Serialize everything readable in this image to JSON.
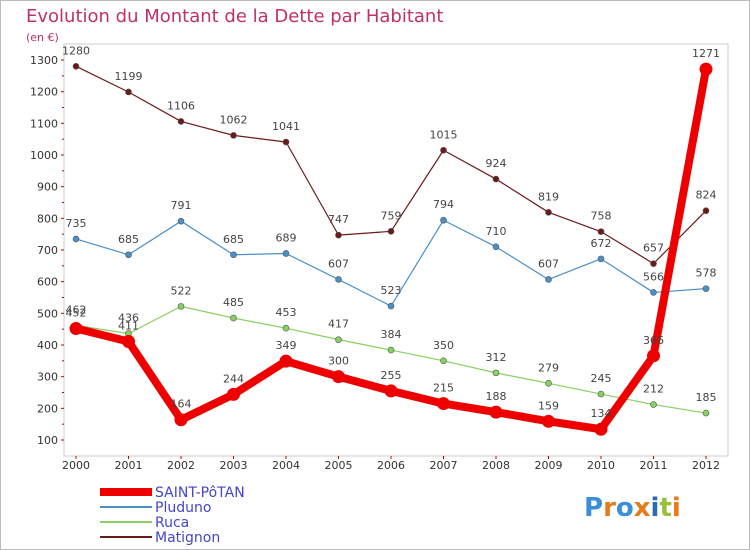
{
  "chart_data": {
    "type": "line",
    "title": "Evolution du Montant de la Dette par Habitant",
    "subtitle": "(en €)",
    "x": [
      "2000",
      "2001",
      "2002",
      "2003",
      "2004",
      "2005",
      "2006",
      "2007",
      "2008",
      "2009",
      "2010",
      "2011",
      "2012"
    ],
    "ylim": [
      100,
      1300
    ],
    "yticks": [
      100,
      200,
      300,
      400,
      500,
      600,
      700,
      800,
      900,
      1000,
      1100,
      1200,
      1300
    ],
    "grid": false,
    "legend_placement": "bottom-left",
    "series": [
      {
        "name": "Matignon",
        "color": "#6b1a1a",
        "values": [
          1280,
          1199,
          1106,
          1062,
          1041,
          747,
          759,
          1015,
          924,
          819,
          758,
          657,
          824
        ],
        "labels": [
          "1280",
          "1199",
          "1106",
          "1062",
          "1041",
          "747",
          "759",
          "1015",
          "924",
          "819",
          "758",
          "657",
          "824"
        ]
      },
      {
        "name": "Pluduno",
        "color": "#4a90c8",
        "values": [
          735,
          685,
          791,
          685,
          689,
          607,
          523,
          794,
          710,
          607,
          672,
          566,
          578
        ],
        "labels": [
          "735",
          "685",
          "791",
          "685",
          "689",
          "607",
          "523",
          "794",
          "710",
          "607",
          "672",
          "566",
          "578"
        ]
      },
      {
        "name": "Ruca",
        "color": "#88d060",
        "values": [
          462,
          436,
          522,
          485,
          453,
          417,
          384,
          350,
          312,
          279,
          245,
          212,
          185
        ],
        "labels": [
          "462",
          "436",
          "522",
          "485",
          "453",
          "417",
          "384",
          "350",
          "312",
          "279",
          "245",
          "212",
          "185"
        ]
      },
      {
        "name": "SAINT-PôTAN",
        "color": "#ee0000",
        "values": [
          452,
          411,
          164,
          244,
          349,
          300,
          255,
          215,
          188,
          159,
          134,
          366,
          1271
        ],
        "labels": [
          "452",
          "411",
          "164",
          "244",
          "349",
          "300",
          "255",
          "215",
          "188",
          "159",
          "134",
          "366",
          "1271"
        ]
      }
    ],
    "legend_order": [
      "SAINT-PôTAN",
      "Pluduno",
      "Ruca",
      "Matignon"
    ]
  },
  "logo": {
    "text": "Proxiti",
    "colors": [
      "#3a8fd8",
      "#e87a1a",
      "#3a8fd8",
      "#e87a1a",
      "#2a6ab0",
      "#9ac03a",
      "#e87a1a"
    ]
  }
}
